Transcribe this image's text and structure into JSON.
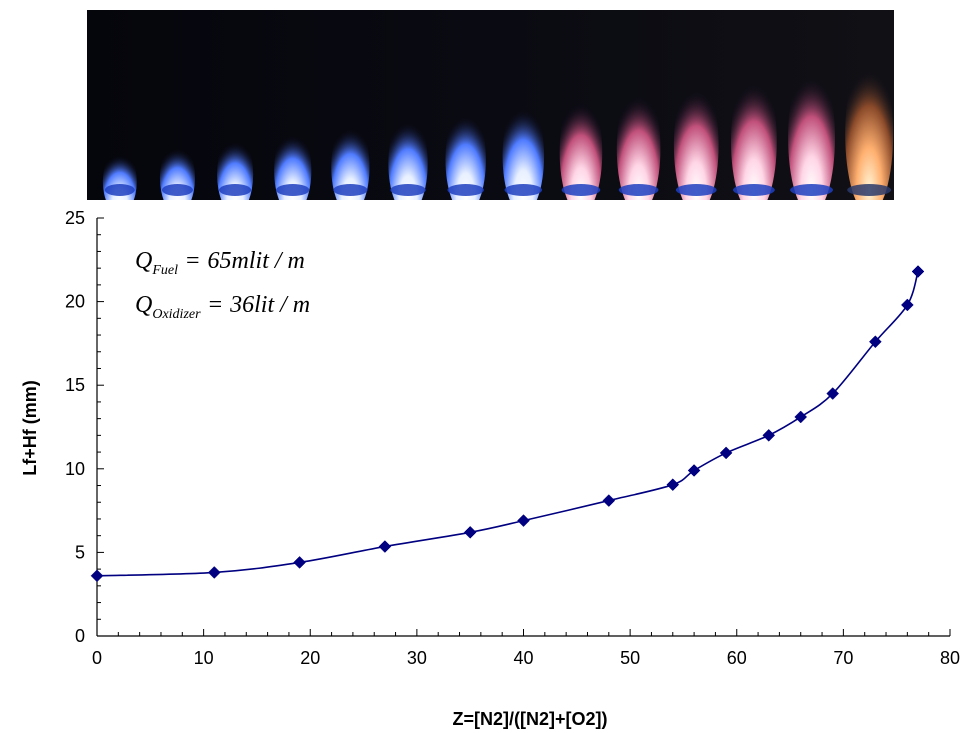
{
  "photo": {
    "icon": "flame-photo-strip",
    "flame_count": 14
  },
  "annotation": {
    "fuel": {
      "symbol": "Q",
      "subscript": "Fuel",
      "operator": "=",
      "value": "65mlit / m"
    },
    "oxidizer": {
      "symbol": "Q",
      "subscript": "Oxidizer",
      "operator": "=",
      "value": "36lit / m"
    }
  },
  "chart_data": {
    "type": "line",
    "xlabel": "Z=[N2]/([N2]+[O2])",
    "ylabel": "Lf+Hf (mm)",
    "xlim": [
      0,
      80
    ],
    "ylim": [
      0,
      25
    ],
    "x_ticks": [
      "0",
      "10",
      "20",
      "30",
      "40",
      "50",
      "60",
      "70",
      "80"
    ],
    "y_ticks": [
      "0",
      "5",
      "10",
      "15",
      "20",
      "25"
    ],
    "grid": false,
    "series": [
      {
        "marker": "diamond",
        "color": "#000080",
        "x": [
          0,
          11,
          19,
          27,
          35,
          40,
          48,
          54,
          56,
          59,
          63,
          66,
          69,
          73,
          76,
          77
        ],
        "y": [
          3.6,
          3.8,
          4.4,
          5.35,
          6.2,
          6.9,
          8.1,
          9.05,
          9.9,
          10.95,
          12.0,
          13.1,
          14.5,
          17.6,
          19.8,
          21.8
        ]
      }
    ]
  }
}
